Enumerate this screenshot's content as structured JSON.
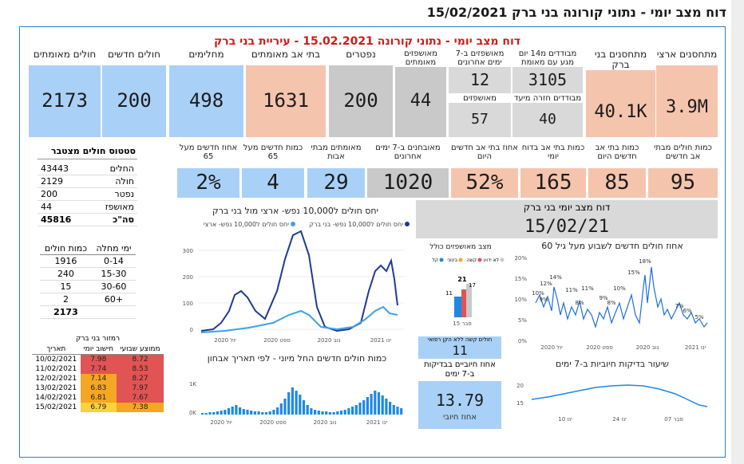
{
  "page_title": "דוח מצב יומי - נתוני קורונה בני ברק 15/02/2021",
  "dashboard_title": "דוח מצב יומי - נתוני קורונה 15.02.2021 - עיריית בני ברק",
  "top_cards": [
    {
      "label": "מתחסנים ארצי",
      "value": "3.9M"
    },
    {
      "label": "מתחסנים בני ברק",
      "value": "40.1K"
    },
    {
      "label": "מבודדים מ14 יום מגע עם מאומת",
      "value": "3105"
    },
    {
      "label": "מבודדים חזרה מיעד",
      "value": "40"
    },
    {
      "label": "מאושפזים ב-7 ימים אחרונים",
      "value": "12"
    },
    {
      "label": "מאושפזים",
      "value": "57"
    },
    {
      "label": "מאושפזים מאומתים",
      "value": "44"
    },
    {
      "label": "נפטרים",
      "value": "200"
    },
    {
      "label": "בתי אב מאומתים",
      "value": "1631"
    },
    {
      "label": "מחלימים",
      "value": "498"
    },
    {
      "label": "חולים חדשים",
      "value": "200"
    },
    {
      "label": "חולים מאומתים",
      "value": "2173"
    }
  ],
  "second_cards": [
    {
      "label": "כמות חולים מבתי אב חדשים",
      "value": "95"
    },
    {
      "label": "כמות בתי אב חדשים היום",
      "value": "85"
    },
    {
      "label": "כמות בתי אב בדוח יומי",
      "value": "165"
    },
    {
      "label": "אחוז בתי אב חדשים היום",
      "value": "52%"
    },
    {
      "label": "מאובחנים ב-7 ימים אחרונים",
      "value": "1020"
    },
    {
      "label": "מאומתים מבתי אבות",
      "value": "29"
    },
    {
      "label": "כמות חדשים מעל 65",
      "value": "4"
    },
    {
      "label": "אחוז חדשים מעל 65",
      "value": "2%"
    }
  ],
  "status_table": {
    "title": "סטטוס חולים מצטבר",
    "rows": [
      [
        "החלים",
        "43443"
      ],
      [
        "חולה",
        "2129"
      ],
      [
        "נפטר",
        "200"
      ],
      [
        "מאושפז",
        "44"
      ]
    ],
    "total": [
      "סה\"כ",
      "45816"
    ]
  },
  "age_table": {
    "headers": [
      "ימי מחלה",
      "כמות חולים"
    ],
    "rows": [
      [
        "0-14",
        "1916"
      ],
      [
        "15-30",
        "240"
      ],
      [
        "30-60",
        "15"
      ],
      [
        "60+",
        "2"
      ]
    ],
    "total": "2173"
  },
  "traffic_table": {
    "title": "רמזור בני ברק",
    "headers": [
      "תאריך",
      "חישוב יומי",
      "ממוצע שבועי"
    ],
    "rows": [
      {
        "date": "10/02/2021",
        "daily": "7.98",
        "weekly": "8.72",
        "dc": "red",
        "wc": "red"
      },
      {
        "date": "11/02/2021",
        "daily": "7.74",
        "weekly": "8.53",
        "dc": "red",
        "wc": "red"
      },
      {
        "date": "12/02/2021",
        "daily": "7.14",
        "weekly": "8.27",
        "dc": "orange",
        "wc": "red"
      },
      {
        "date": "13/02/2021",
        "daily": "6.83",
        "weekly": "7.97",
        "dc": "orange",
        "wc": "red"
      },
      {
        "date": "14/02/2021",
        "daily": "6.81",
        "weekly": "7.67",
        "dc": "orange",
        "wc": "red"
      },
      {
        "date": "15/02/2021",
        "daily": "6.79",
        "weekly": "7.38",
        "dc": "yellow",
        "wc": "orange"
      }
    ]
  },
  "ratio_chart": {
    "title": "יחס חולים ל10,000 נפש- ארצי מול בני ברק",
    "legend": [
      "יחס חולים ל10,000 נפש- בני ברק",
      "יחס חולים ל10,000 נפש- ארצי"
    ],
    "yticks": [
      "300",
      "200",
      "100",
      "0"
    ],
    "xticks": [
      "יול 2020",
      "ספט 2020",
      "נוב 2020",
      "ינו 2021"
    ]
  },
  "daily_new_chart": {
    "title": "כמות חולים חדשים החל מיוני - לפי תאריך אבחון",
    "yticks": [
      "1K",
      "0K"
    ],
    "xticks": [
      "יול 2020",
      "ספט 2020",
      "נוב 2020",
      "ינו 2021"
    ]
  },
  "report_date": {
    "label": "דוח מצב יומי בני ברק",
    "value": "15/02/21"
  },
  "hosp_chart": {
    "title": "מצב מאושפזים כולל",
    "legend": [
      "לא ידוע",
      "קשה",
      "בינוני",
      "קל"
    ],
    "labels": [
      "21",
      "17",
      "11"
    ],
    "xlabel": "פבר 15",
    "critical_label": "חולים קשה ללא הקן רפואי",
    "critical_value": "11"
  },
  "over60_chart": {
    "title": "אחוז חולים חדשים לשבוע מעל גיל 60",
    "yticks": [
      "20%",
      "15%",
      "10%",
      "5%",
      "0%"
    ],
    "xticks": [
      "יול 2020",
      "ספט 2020",
      "נוב 2020",
      "ינו 2021"
    ],
    "data_labels": [
      "18%",
      "15%",
      "14%",
      "12%",
      "11%",
      "11%",
      "10%",
      "10%",
      "9%",
      "9%",
      "8%",
      "8%",
      "7%",
      "6%",
      "5%"
    ]
  },
  "positive_pct": {
    "label": "אחוז חיוביים בבדיקות ב-7 ימים",
    "value": "13.79",
    "sub": "אחוז חיובי"
  },
  "positive_chart": {
    "title": "שיעור בדיקות חיוביות ב-7 ימים",
    "yticks": [
      "20",
      "15"
    ],
    "xticks": [
      "ינו 10",
      "ינו 24",
      "פבר 07"
    ]
  }
}
